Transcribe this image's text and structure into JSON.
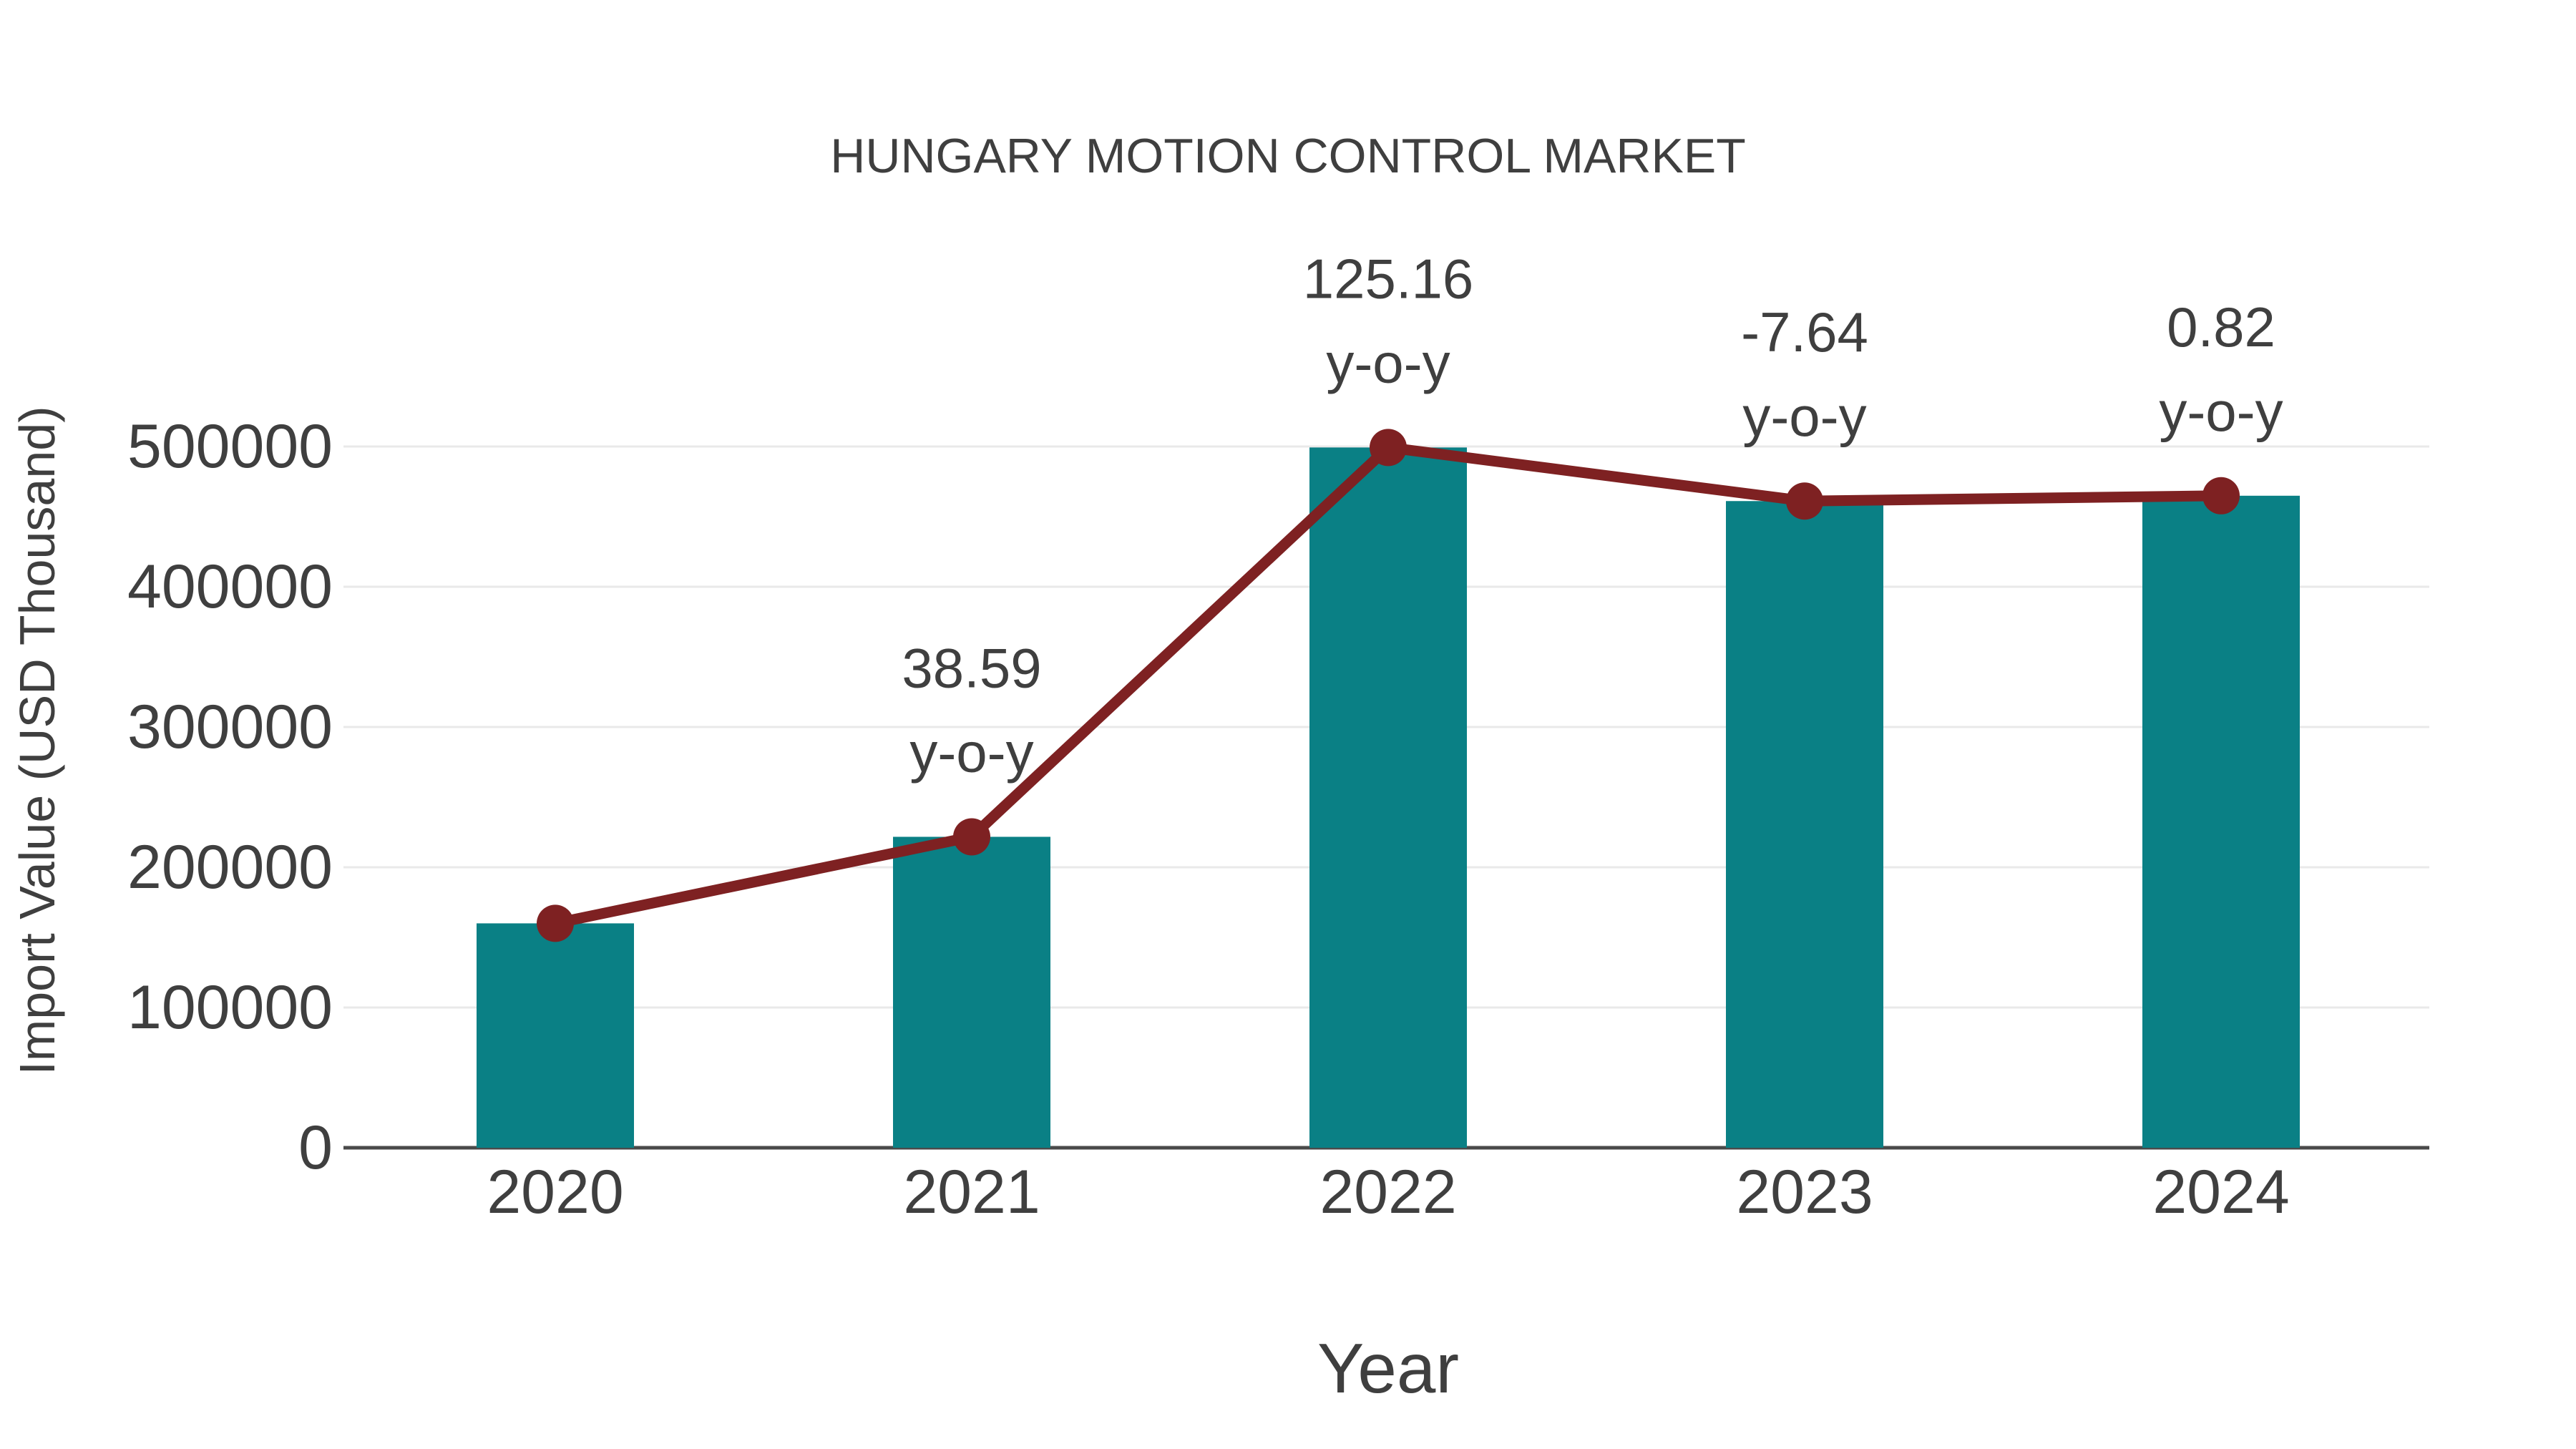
{
  "chart_data": {
    "type": "bar",
    "title": "HUNGARY MOTION CONTROL MARKET",
    "xlabel": "Year",
    "ylabel": "Import Value (USD Thousand)",
    "categories": [
      "2020",
      "2021",
      "2022",
      "2023",
      "2024"
    ],
    "series": [
      {
        "name": "Import Value bars",
        "type": "bar",
        "values": [
          160000,
          221700,
          499300,
          461100,
          464900
        ],
        "color": "#0A8085"
      },
      {
        "name": "Import Value trend line",
        "type": "line",
        "values": [
          160000,
          221700,
          499300,
          461100,
          464900
        ],
        "color": "#7E2122"
      }
    ],
    "annotations": [
      {
        "category": "2021",
        "value": "38.59",
        "suffix": "y-o-y"
      },
      {
        "category": "2022",
        "value": "125.16",
        "suffix": "y-o-y"
      },
      {
        "category": "2023",
        "value": "-7.64",
        "suffix": "y-o-y"
      },
      {
        "category": "2024",
        "value": "0.82",
        "suffix": "y-o-y"
      }
    ],
    "ylim": [
      0,
      530000
    ],
    "yticks": [
      0,
      100000,
      200000,
      300000,
      400000,
      500000
    ],
    "grid": true,
    "legend": "none",
    "colors": {
      "bar": "#0A8085",
      "line": "#7E2122",
      "marker": "#7E2122",
      "text": "#3F3F3F",
      "gridline": "#E9E9E9",
      "axis_line": "#4A4A4A",
      "background": "#FFFFFF"
    }
  }
}
